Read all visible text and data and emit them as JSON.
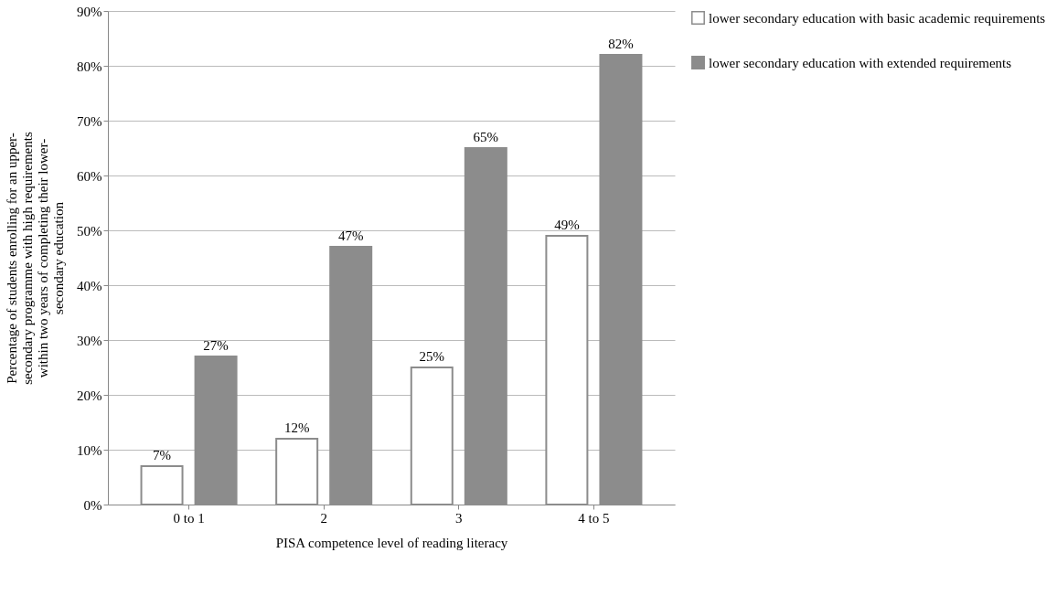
{
  "chart_data": {
    "type": "bar",
    "categories": [
      "0 to 1",
      "2",
      "3",
      "4 to 5"
    ],
    "xlabel": "PISA competence level of reading literacy",
    "ylabel": "Percentage of students enrolling for an upper-\nsecondary programme with high requirements\nwithin two years of completing their lower-\nsecondary education",
    "series": [
      {
        "name": "lower secondary education with basic academic requirements",
        "color": "#ffffff",
        "values": [
          7,
          12,
          25,
          49
        ],
        "value_labels": [
          "7%",
          "12%",
          "25%",
          "49%"
        ]
      },
      {
        "name": "lower secondary education with extended requirements",
        "color": "#8c8c8c",
        "values": [
          27,
          47,
          65,
          82
        ],
        "value_labels": [
          "27%",
          "47%",
          "65%",
          "82%"
        ]
      }
    ],
    "ylim": [
      0,
      90
    ],
    "yticks": [
      {
        "value": 0,
        "label": "0%"
      },
      {
        "value": 10,
        "label": "10%"
      },
      {
        "value": 20,
        "label": "20%"
      },
      {
        "value": 30,
        "label": "30%"
      },
      {
        "value": 40,
        "label": "40%"
      },
      {
        "value": 50,
        "label": "50%"
      },
      {
        "value": 60,
        "label": "60%"
      },
      {
        "value": 70,
        "label": "70%"
      },
      {
        "value": 80,
        "label": "80%"
      },
      {
        "value": 90,
        "label": "90%"
      }
    ],
    "grid": "y",
    "legend": "right"
  }
}
